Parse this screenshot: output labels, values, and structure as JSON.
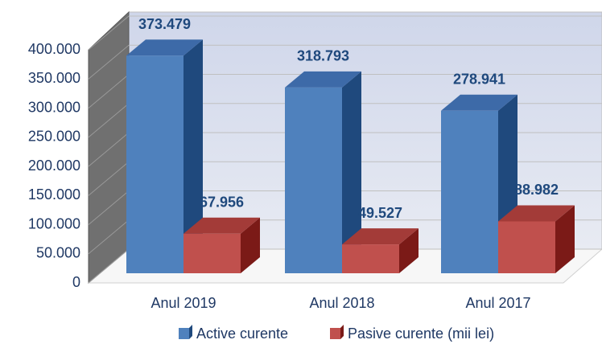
{
  "chart_data": {
    "type": "bar3d",
    "categories": [
      "Anul 2019",
      "Anul 2018",
      "Anul 2017"
    ],
    "series": [
      {
        "name": "Active curente",
        "color": "#4f81bd",
        "values": [
          373479,
          318793,
          278941
        ],
        "value_labels": [
          "373.479",
          "318.793",
          "278.941"
        ]
      },
      {
        "name": "Pasive curente (mii lei)",
        "color": "#c0504d",
        "values": [
          67956,
          49527,
          88982
        ],
        "value_labels": [
          "67.956",
          "49.527",
          "88.982"
        ]
      }
    ],
    "ylim": [
      0,
      400000
    ],
    "yticks": [
      0,
      {
        "value": 50000,
        "label": "50.000"
      },
      {
        "value": 100000,
        "label": "100.000"
      },
      {
        "value": 150000,
        "label": "150.000"
      },
      {
        "value": 200000,
        "label": "200.000"
      },
      {
        "value": 250000,
        "label": "250.000"
      },
      {
        "value": 300000,
        "label": "300.000"
      },
      {
        "value": 350000,
        "label": "350.000"
      },
      {
        "value": 400000,
        "label": "400.000"
      }
    ],
    "grid": true
  }
}
